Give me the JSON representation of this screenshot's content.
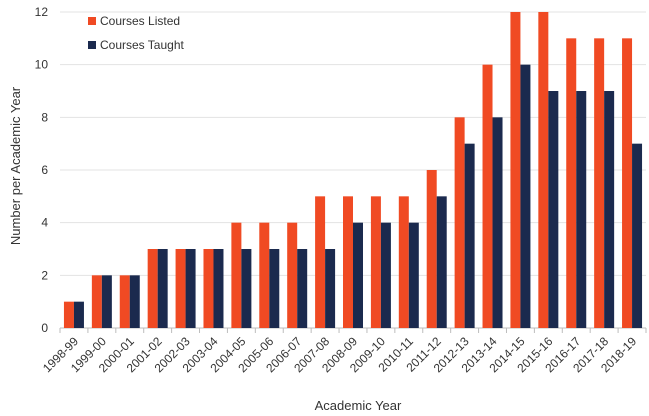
{
  "chart_data": {
    "type": "bar",
    "xlabel": "Academic Year",
    "ylabel": "Number per Academic Year",
    "ylim": [
      0,
      12
    ],
    "yticks": [
      0,
      2,
      4,
      6,
      8,
      10,
      12
    ],
    "grid": "horizontal",
    "legend_position": "top-left",
    "categories": [
      "1998-99",
      "1999-00",
      "2000-01",
      "2001-02",
      "2002-03",
      "2003-04",
      "2004-05",
      "2005-06",
      "2006-07",
      "2007-08",
      "2008-09",
      "2009-10",
      "2010-11",
      "2011-12",
      "2012-13",
      "2013-14",
      "2014-15",
      "2015-16",
      "2016-17",
      "2017-18",
      "2018-19"
    ],
    "series": [
      {
        "name": "Courses Listed",
        "color": "#F04A23",
        "values": [
          1,
          2,
          2,
          3,
          3,
          3,
          4,
          4,
          4,
          5,
          5,
          5,
          5,
          6,
          8,
          10,
          12,
          12,
          11,
          11,
          11
        ]
      },
      {
        "name": "Courses Taught",
        "color": "#1B2A4E",
        "values": [
          1,
          2,
          2,
          3,
          3,
          3,
          3,
          3,
          3,
          3,
          4,
          4,
          4,
          5,
          7,
          8,
          10,
          9,
          9,
          9,
          7
        ]
      }
    ]
  }
}
